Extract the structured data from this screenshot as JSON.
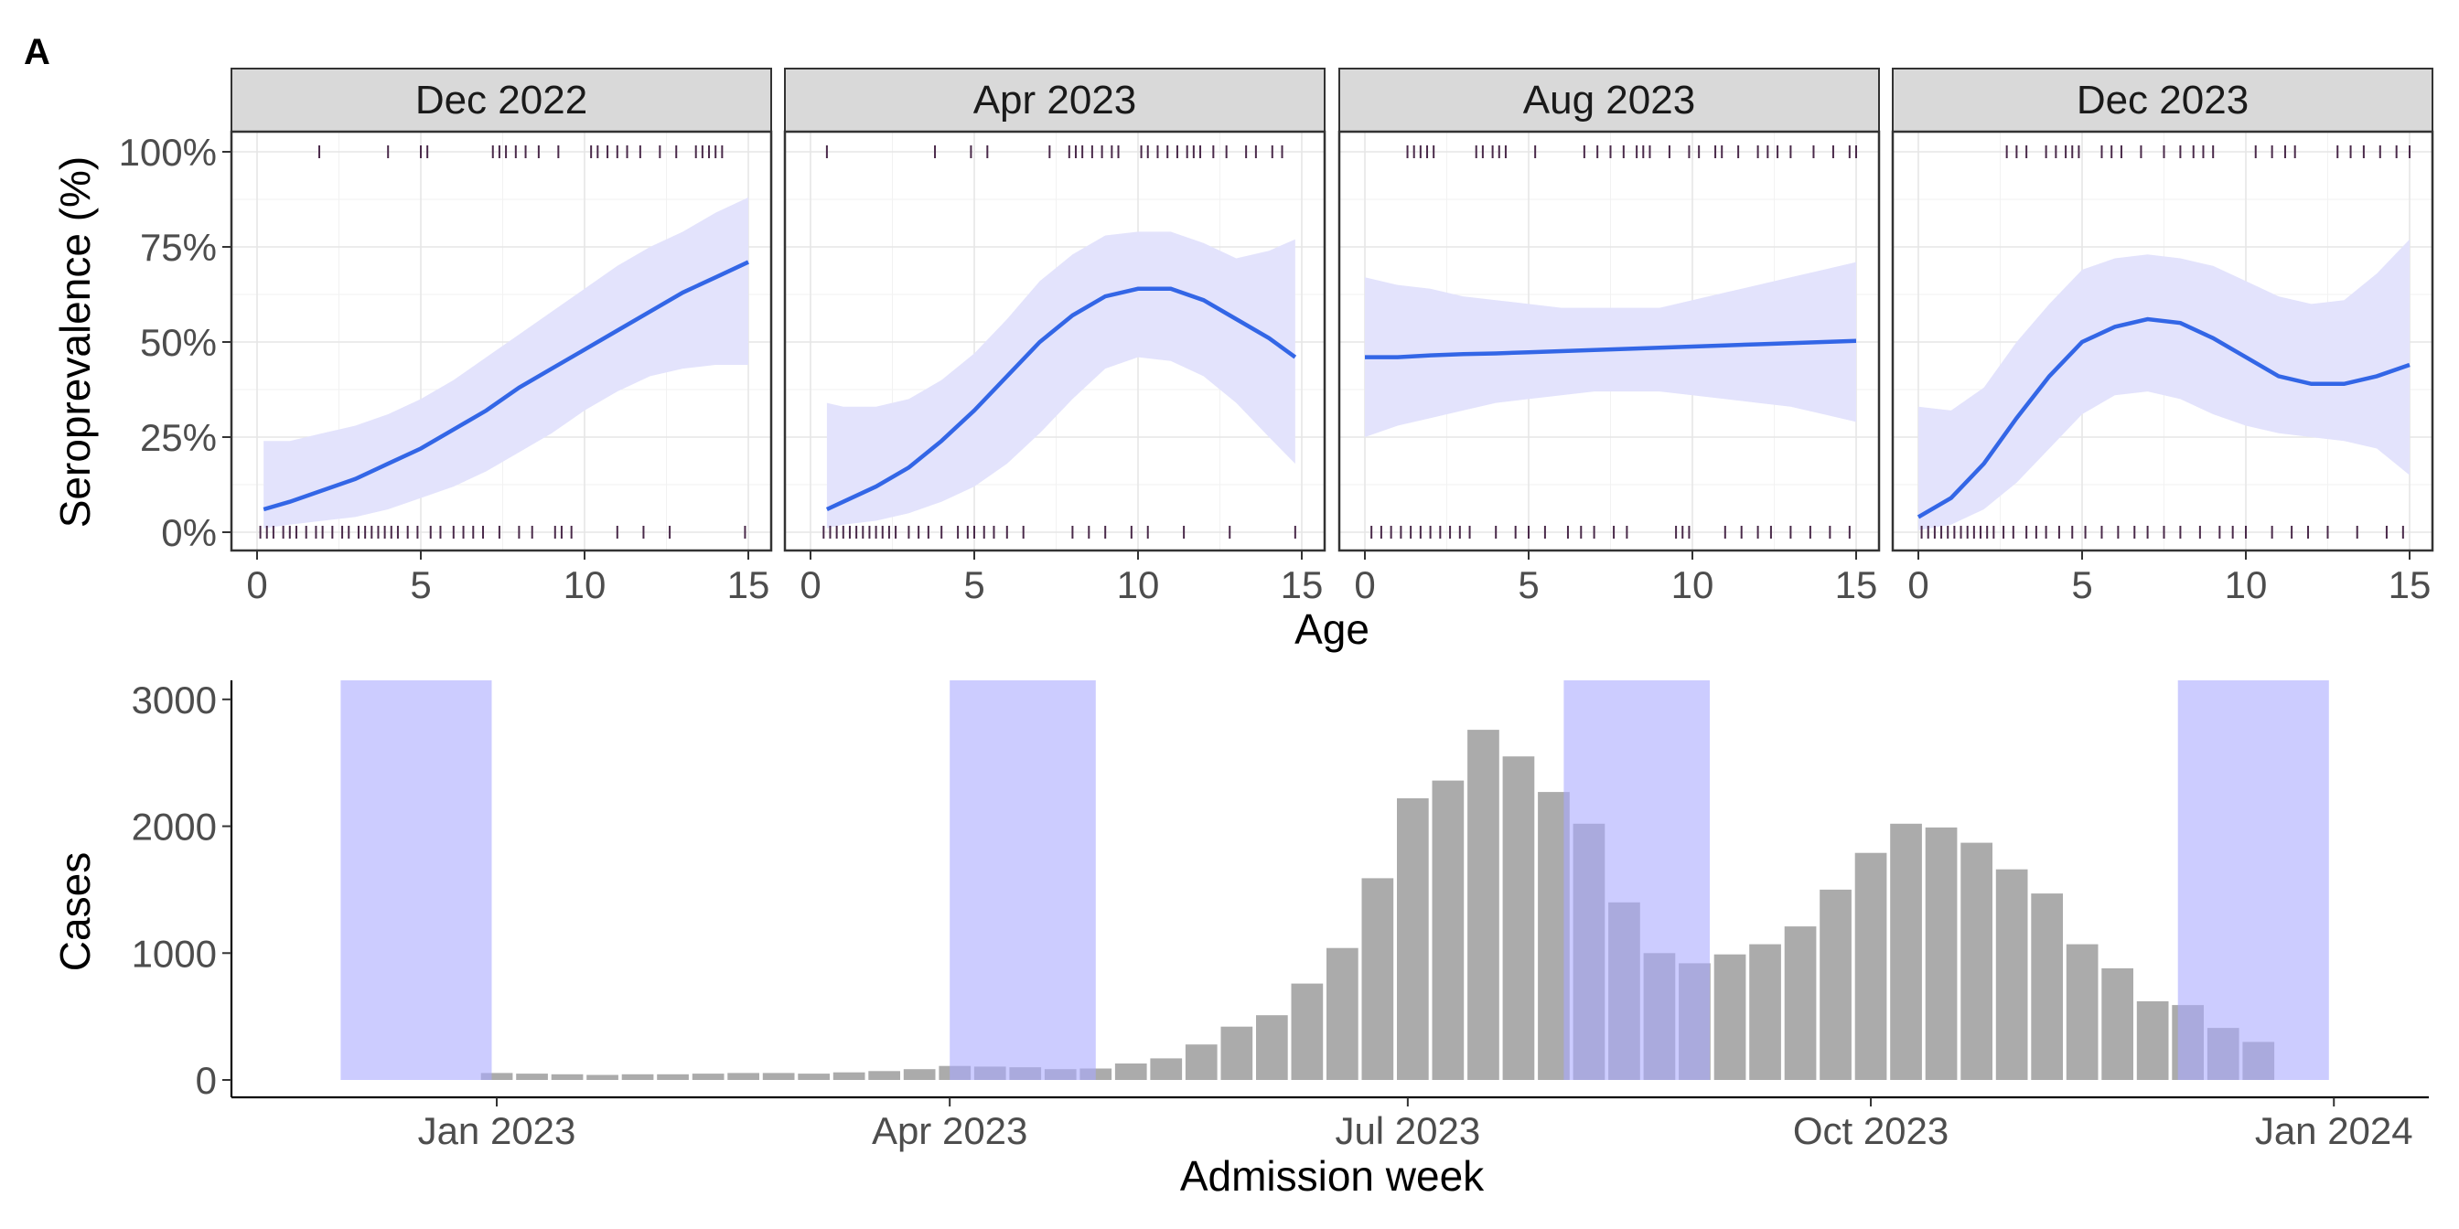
{
  "figure": {
    "panel_letter": "A"
  },
  "chart_data": [
    {
      "type": "line",
      "facet_titles": [
        "Dec 2022",
        "Apr 2023",
        "Aug 2023",
        "Dec 2023"
      ],
      "xlabel": "Age",
      "ylabel": "Seroprevalence (%)",
      "xlim": [
        0,
        15
      ],
      "ylim": [
        0,
        100
      ],
      "xticks": [
        "0",
        "5",
        "10",
        "15"
      ],
      "yticks": [
        "0%",
        "25%",
        "50%",
        "75%",
        "100%"
      ],
      "grid": true,
      "colors": {
        "fit": "#3366e6",
        "band": "#e3e3fc",
        "strip": "#d9d9d9",
        "rug": "#4a2a4a"
      },
      "facets": [
        {
          "name": "Dec 2022",
          "x": [
            0.2,
            1,
            2,
            3,
            4,
            5,
            6,
            7,
            8,
            9,
            10,
            11,
            12,
            13,
            14,
            15
          ],
          "y": [
            6,
            8,
            11,
            14,
            18,
            22,
            27,
            32,
            38,
            43,
            48,
            53,
            58,
            63,
            67,
            71
          ],
          "lower": [
            1,
            2,
            3,
            4,
            6,
            9,
            12,
            16,
            21,
            26,
            32,
            37,
            41,
            43,
            44,
            44
          ],
          "upper": [
            24,
            24,
            26,
            28,
            31,
            35,
            40,
            46,
            52,
            58,
            64,
            70,
            75,
            79,
            84,
            88
          ],
          "rug_positive": [
            1.9,
            4,
            5,
            5.2,
            7.2,
            7.4,
            7.6,
            7.9,
            8.2,
            8.6,
            9.2,
            10.2,
            10.4,
            10.7,
            11,
            11.3,
            11.7,
            12.3,
            12.8,
            13.4,
            13.6,
            13.8,
            14,
            14.2
          ],
          "rug_negative": [
            0.1,
            0.3,
            0.5,
            0.8,
            1.0,
            1.2,
            1.5,
            1.8,
            2.0,
            2.3,
            2.6,
            2.8,
            3.1,
            3.3,
            3.5,
            3.7,
            3.9,
            4.1,
            4.3,
            4.6,
            4.9,
            5.3,
            5.6,
            6.0,
            6.3,
            6.6,
            6.9,
            7.4,
            8.0,
            8.4,
            9.1,
            9.3,
            9.6,
            11.0,
            11.8,
            12.6,
            14.9
          ]
        },
        {
          "name": "Apr 2023",
          "x": [
            0.5,
            1,
            2,
            3,
            4,
            5,
            6,
            7,
            8,
            9,
            10,
            11,
            12,
            13,
            14,
            14.8
          ],
          "y": [
            6,
            8,
            12,
            17,
            24,
            32,
            41,
            50,
            57,
            62,
            64,
            64,
            61,
            56,
            51,
            46
          ],
          "lower": [
            1,
            2,
            3,
            5,
            8,
            12,
            18,
            26,
            35,
            43,
            46,
            45,
            41,
            34,
            25,
            18
          ],
          "upper": [
            34,
            33,
            33,
            35,
            40,
            47,
            56,
            66,
            73,
            78,
            79,
            79,
            76,
            72,
            74,
            77
          ],
          "rug_positive": [
            0.5,
            3.8,
            4.9,
            5.4,
            7.3,
            7.9,
            8.1,
            8.3,
            8.6,
            8.9,
            9.2,
            9.4,
            10.1,
            10.3,
            10.6,
            10.9,
            11.2,
            11.5,
            11.7,
            11.9,
            12.3,
            12.7,
            13.3,
            13.6,
            14.1,
            14.4
          ],
          "rug_negative": [
            0.4,
            0.6,
            0.8,
            1.0,
            1.2,
            1.4,
            1.6,
            1.8,
            2.0,
            2.2,
            2.4,
            2.6,
            3.0,
            3.3,
            3.6,
            4.0,
            4.5,
            4.8,
            5.0,
            5.3,
            5.6,
            6.0,
            6.5,
            8.0,
            8.5,
            9.0,
            9.8,
            10.3,
            11.4,
            12.8,
            14.8
          ]
        },
        {
          "name": "Aug 2023",
          "x": [
            0,
            1,
            2,
            3,
            4,
            5,
            6,
            7,
            8,
            9,
            10,
            11,
            12,
            13,
            14,
            15
          ],
          "y": [
            46,
            46,
            46.5,
            46.8,
            47,
            47.3,
            47.6,
            47.9,
            48.2,
            48.5,
            48.8,
            49.1,
            49.4,
            49.7,
            50,
            50.3
          ],
          "lower": [
            25,
            28,
            30,
            32,
            34,
            35,
            36,
            37,
            37,
            37,
            36,
            35,
            34,
            33,
            31,
            29
          ],
          "upper": [
            67,
            65,
            64,
            62,
            61,
            60,
            59,
            59,
            59,
            59,
            61,
            63,
            65,
            67,
            69,
            71
          ],
          "rug_positive": [
            1.3,
            1.5,
            1.7,
            1.9,
            2.1,
            3.4,
            3.6,
            3.9,
            4.1,
            4.3,
            5.2,
            6.7,
            7.1,
            7.5,
            7.9,
            8.3,
            8.5,
            8.7,
            9.3,
            9.9,
            10.2,
            10.7,
            10.9,
            11.4,
            12.0,
            12.3,
            12.6,
            13.0,
            13.7,
            14.3,
            14.8,
            15.0
          ],
          "rug_negative": [
            0.2,
            0.5,
            0.8,
            1.1,
            1.4,
            1.7,
            2.0,
            2.3,
            2.6,
            2.9,
            3.2,
            4.0,
            4.6,
            5.0,
            5.5,
            6.2,
            6.6,
            7.0,
            7.6,
            8.0,
            9.5,
            9.7,
            9.9,
            11.0,
            11.5,
            12.0,
            12.4,
            13.0,
            13.6,
            14.2,
            14.8
          ]
        },
        {
          "name": "Dec 2023",
          "x": [
            0,
            1,
            2,
            3,
            4,
            5,
            6,
            7,
            8,
            9,
            10,
            11,
            12,
            13,
            14,
            15
          ],
          "y": [
            4,
            9,
            18,
            30,
            41,
            50,
            54,
            56,
            55,
            51,
            46,
            41,
            39,
            39,
            41,
            44
          ],
          "lower": [
            0.5,
            2,
            6,
            13,
            22,
            31,
            36,
            37,
            35,
            31,
            28,
            26,
            25,
            24,
            22,
            15
          ],
          "upper": [
            33,
            32,
            38,
            50,
            60,
            69,
            72,
            73,
            72,
            70,
            66,
            62,
            60,
            61,
            68,
            77
          ],
          "rug_positive": [
            2.7,
            3.0,
            3.3,
            3.9,
            4.2,
            4.5,
            4.7,
            4.9,
            5.6,
            5.9,
            6.2,
            6.8,
            7.5,
            8.0,
            8.4,
            8.7,
            9.0,
            10.3,
            10.8,
            11.2,
            11.5,
            12.8,
            13.2,
            13.6,
            14.1,
            14.6,
            15.0
          ],
          "rug_negative": [
            0.1,
            0.3,
            0.5,
            0.7,
            0.9,
            1.1,
            1.3,
            1.5,
            1.7,
            1.9,
            2.1,
            2.3,
            2.6,
            2.9,
            3.3,
            3.6,
            3.9,
            4.3,
            4.7,
            5.1,
            5.6,
            6.1,
            6.6,
            7.0,
            7.5,
            8.0,
            8.6,
            9.2,
            9.6,
            10.0,
            10.8,
            11.4,
            11.9,
            12.5,
            13.4,
            14.3,
            14.8
          ]
        }
      ]
    },
    {
      "type": "bar",
      "xlabel": "Admission week",
      "ylabel": "Cases",
      "ylim": [
        0,
        3150
      ],
      "yticks": [
        "0",
        "1000",
        "2000",
        "3000"
      ],
      "xlim": [
        "2022-11-06",
        "2024-02-01"
      ],
      "xticks": [
        {
          "date": "2023-01-01",
          "label": "Jan 2023"
        },
        {
          "date": "2023-04-01",
          "label": "Apr 2023"
        },
        {
          "date": "2023-07-01",
          "label": "Jul 2023"
        },
        {
          "date": "2023-10-01",
          "label": "Oct 2023"
        },
        {
          "date": "2024-01-01",
          "label": "Jan 2024"
        }
      ],
      "grid": false,
      "colors": {
        "bar": "#ababab",
        "window": "#aaaaff"
      },
      "bar_width_days": 6.3,
      "windows": [
        {
          "start": "2022-12-01",
          "end": "2022-12-31"
        },
        {
          "start": "2023-04-01",
          "end": "2023-04-30"
        },
        {
          "start": "2023-08-01",
          "end": "2023-08-30"
        },
        {
          "start": "2023-12-01",
          "end": "2023-12-31"
        }
      ],
      "weeks": [
        "2023-01-01",
        "2023-01-08",
        "2023-01-15",
        "2023-01-22",
        "2023-01-29",
        "2023-02-05",
        "2023-02-12",
        "2023-02-19",
        "2023-02-26",
        "2023-03-05",
        "2023-03-12",
        "2023-03-19",
        "2023-03-26",
        "2023-04-02",
        "2023-04-09",
        "2023-04-16",
        "2023-04-23",
        "2023-04-30",
        "2023-05-07",
        "2023-05-14",
        "2023-05-21",
        "2023-05-28",
        "2023-06-04",
        "2023-06-11",
        "2023-06-18",
        "2023-06-25",
        "2023-07-02",
        "2023-07-09",
        "2023-07-16",
        "2023-07-23",
        "2023-07-30",
        "2023-08-06",
        "2023-08-13",
        "2023-08-20",
        "2023-08-27",
        "2023-09-03",
        "2023-09-10",
        "2023-09-17",
        "2023-09-24",
        "2023-10-01",
        "2023-10-08",
        "2023-10-15",
        "2023-10-22",
        "2023-10-29",
        "2023-11-05",
        "2023-11-12",
        "2023-11-19",
        "2023-11-26",
        "2023-12-03",
        "2023-12-10",
        "2023-12-17",
        "2023-12-24"
      ],
      "values": [
        55,
        50,
        45,
        40,
        45,
        45,
        50,
        55,
        55,
        50,
        60,
        70,
        85,
        110,
        105,
        100,
        85,
        90,
        130,
        170,
        280,
        420,
        510,
        760,
        1040,
        1590,
        2220,
        2360,
        2760,
        2550,
        2270,
        2020,
        1400,
        1000,
        920,
        990,
        1070,
        1210,
        1500,
        1790,
        2020,
        1990,
        1870,
        1660,
        1470,
        1070,
        880,
        620,
        590,
        410,
        300,
        0
      ]
    }
  ]
}
